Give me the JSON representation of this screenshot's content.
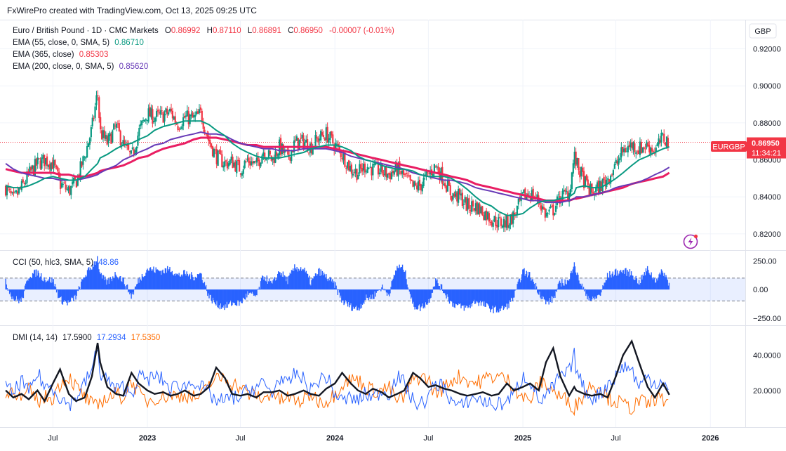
{
  "header": {
    "credit": "FxWirePro created with TradingView.com, Oct 13, 2025 09:25 UTC"
  },
  "colors": {
    "up": "#089981",
    "down": "#f23645",
    "ema55": "#089981",
    "ema365": "#673ab7",
    "ema200": "#e91e63",
    "cci": "#2962ff",
    "di_plus": "#2962ff",
    "di_minus": "#ff6d00",
    "adx": "#131722",
    "tag_bg": "#f23645"
  },
  "icons": {
    "flash": "lightning-icon"
  },
  "chart_data": [
    {
      "type": "line",
      "name_label": "Euro / British Pound · 1D · CMC Markets",
      "ohlc": {
        "o_label": "O",
        "o": "0.86992",
        "h_label": "H",
        "h": "0.87110",
        "l_label": "L",
        "l": "0.86891",
        "c_label": "C",
        "c": "0.86950",
        "change": "-0.00007 (-0.01%)"
      },
      "indicators": [
        {
          "label": "EMA (55, close, 0, SMA, 5)",
          "value": "0.86710",
          "color": "#089981"
        },
        {
          "label": "EMA (365, close)",
          "value": "0.85303",
          "color": "#673ab7"
        },
        {
          "label": "EMA (200, close, 0, SMA, 5)",
          "value": "0.85620",
          "color": "#673ab7"
        }
      ],
      "currency": "GBP",
      "symbol_tag": "EURGBP",
      "price_tag": "0.86950",
      "countdown": "11:34:21",
      "last_price": 0.8695,
      "ylim": [
        0.812,
        0.935
      ],
      "yticks": [
        0.82,
        0.84,
        0.86,
        0.88,
        0.9,
        0.92
      ],
      "ytick_labels": [
        "0.82000",
        "0.84000",
        "0.86000",
        "0.88000",
        "0.90000",
        "0.92000"
      ],
      "x": [
        "2022-03-31",
        "2022-04-15",
        "2022-05-01",
        "2022-05-15",
        "2022-06-01",
        "2022-06-15",
        "2022-07-01",
        "2022-07-15",
        "2022-08-01",
        "2022-08-15",
        "2022-09-01",
        "2022-09-15",
        "2022-09-26",
        "2022-10-01",
        "2022-10-15",
        "2022-11-01",
        "2022-11-15",
        "2022-12-01",
        "2022-12-15",
        "2023-01-01",
        "2023-01-15",
        "2023-02-01",
        "2023-02-15",
        "2023-03-01",
        "2023-03-15",
        "2023-04-01",
        "2023-04-15",
        "2023-05-01",
        "2023-05-15",
        "2023-06-01",
        "2023-06-15",
        "2023-07-01",
        "2023-07-15",
        "2023-08-01",
        "2023-08-15",
        "2023-09-01",
        "2023-09-15",
        "2023-10-01",
        "2023-10-15",
        "2023-11-01",
        "2023-11-15",
        "2023-12-01",
        "2023-12-15",
        "2024-01-01",
        "2024-01-15",
        "2024-02-01",
        "2024-02-15",
        "2024-03-01",
        "2024-03-15",
        "2024-04-01",
        "2024-04-15",
        "2024-05-01",
        "2024-05-15",
        "2024-06-01",
        "2024-06-15",
        "2024-07-01",
        "2024-07-15",
        "2024-08-01",
        "2024-08-15",
        "2024-09-01",
        "2024-09-15",
        "2024-10-01",
        "2024-10-15",
        "2024-11-01",
        "2024-11-15",
        "2024-12-01",
        "2024-12-15",
        "2025-01-01",
        "2025-01-15",
        "2025-02-01",
        "2025-02-15",
        "2025-03-01",
        "2025-03-15",
        "2025-04-01",
        "2025-04-11",
        "2025-04-15",
        "2025-05-01",
        "2025-05-15",
        "2025-06-01",
        "2025-06-15",
        "2025-07-01",
        "2025-07-15",
        "2025-08-01",
        "2025-08-15",
        "2025-09-01",
        "2025-09-15",
        "2025-10-01",
        "2025-10-13"
      ],
      "close": [
        0.845,
        0.838,
        0.845,
        0.852,
        0.858,
        0.86,
        0.858,
        0.847,
        0.843,
        0.848,
        0.862,
        0.877,
        0.897,
        0.875,
        0.869,
        0.878,
        0.868,
        0.861,
        0.875,
        0.885,
        0.883,
        0.884,
        0.886,
        0.879,
        0.883,
        0.882,
        0.885,
        0.87,
        0.862,
        0.858,
        0.859,
        0.855,
        0.86,
        0.857,
        0.865,
        0.86,
        0.867,
        0.861,
        0.869,
        0.87,
        0.867,
        0.872,
        0.874,
        0.868,
        0.863,
        0.855,
        0.853,
        0.857,
        0.855,
        0.854,
        0.852,
        0.855,
        0.851,
        0.845,
        0.846,
        0.852,
        0.857,
        0.849,
        0.841,
        0.84,
        0.835,
        0.835,
        0.832,
        0.828,
        0.826,
        0.826,
        0.83,
        0.84,
        0.842,
        0.838,
        0.83,
        0.833,
        0.84,
        0.842,
        0.862,
        0.858,
        0.848,
        0.842,
        0.846,
        0.85,
        0.857,
        0.865,
        0.868,
        0.866,
        0.868,
        0.865,
        0.872,
        0.8695
      ],
      "ema55": [
        0.846,
        0.845,
        0.845,
        0.846,
        0.848,
        0.85,
        0.851,
        0.85,
        0.849,
        0.849,
        0.851,
        0.855,
        0.858,
        0.861,
        0.863,
        0.866,
        0.868,
        0.869,
        0.871,
        0.873,
        0.876,
        0.878,
        0.879,
        0.88,
        0.881,
        0.881,
        0.881,
        0.879,
        0.876,
        0.873,
        0.869,
        0.866,
        0.864,
        0.862,
        0.861,
        0.861,
        0.861,
        0.862,
        0.863,
        0.864,
        0.866,
        0.867,
        0.868,
        0.868,
        0.867,
        0.865,
        0.862,
        0.86,
        0.859,
        0.857,
        0.856,
        0.855,
        0.855,
        0.854,
        0.852,
        0.851,
        0.851,
        0.851,
        0.85,
        0.847,
        0.844,
        0.84,
        0.837,
        0.835,
        0.832,
        0.83,
        0.83,
        0.831,
        0.834,
        0.837,
        0.838,
        0.838,
        0.839,
        0.84,
        0.842,
        0.845,
        0.846,
        0.845,
        0.845,
        0.847,
        0.85,
        0.853,
        0.857,
        0.86,
        0.862,
        0.864,
        0.866,
        0.867
      ],
      "ema365": [
        0.858,
        0.855,
        0.853,
        0.852,
        0.851,
        0.85,
        0.85,
        0.849,
        0.849,
        0.849,
        0.85,
        0.851,
        0.852,
        0.853,
        0.855,
        0.857,
        0.86,
        0.862,
        0.864,
        0.866,
        0.868,
        0.869,
        0.871,
        0.872,
        0.873,
        0.874,
        0.875,
        0.874,
        0.874,
        0.873,
        0.871,
        0.869,
        0.868,
        0.867,
        0.866,
        0.866,
        0.865,
        0.865,
        0.865,
        0.866,
        0.866,
        0.866,
        0.866,
        0.865,
        0.864,
        0.862,
        0.861,
        0.86,
        0.859,
        0.858,
        0.857,
        0.856,
        0.855,
        0.853,
        0.852,
        0.851,
        0.85,
        0.849,
        0.849,
        0.848,
        0.847,
        0.845,
        0.844,
        0.843,
        0.842,
        0.841,
        0.84,
        0.839,
        0.838,
        0.838,
        0.837,
        0.837,
        0.837,
        0.838,
        0.839,
        0.84,
        0.84,
        0.841,
        0.842,
        0.843,
        0.845,
        0.846,
        0.847,
        0.848,
        0.85,
        0.852,
        0.854,
        0.856
      ],
      "ema200": [
        0.855,
        0.854,
        0.853,
        0.853,
        0.853,
        0.853,
        0.853,
        0.852,
        0.852,
        0.851,
        0.851,
        0.852,
        0.853,
        0.854,
        0.855,
        0.856,
        0.857,
        0.859,
        0.861,
        0.862,
        0.864,
        0.866,
        0.867,
        0.868,
        0.869,
        0.871,
        0.872,
        0.872,
        0.872,
        0.871,
        0.87,
        0.869,
        0.868,
        0.868,
        0.867,
        0.867,
        0.867,
        0.867,
        0.867,
        0.867,
        0.867,
        0.867,
        0.867,
        0.866,
        0.865,
        0.864,
        0.863,
        0.862,
        0.861,
        0.86,
        0.859,
        0.858,
        0.857,
        0.856,
        0.855,
        0.854,
        0.853,
        0.852,
        0.851,
        0.85,
        0.849,
        0.847,
        0.846,
        0.845,
        0.844,
        0.843,
        0.842,
        0.841,
        0.84,
        0.839,
        0.838,
        0.838,
        0.838,
        0.838,
        0.839,
        0.839,
        0.84,
        0.841,
        0.842,
        0.843,
        0.844,
        0.845,
        0.847,
        0.848,
        0.849,
        0.85,
        0.851,
        0.853
      ]
    },
    {
      "type": "bar",
      "label": "CCI (50, hlc3, SMA, 5)",
      "value": "48.86",
      "ylim": [
        -300,
        320
      ],
      "yticks": [
        250,
        0,
        -250
      ],
      "ytick_labels": [
        "250.00",
        "0.00",
        "−250.00"
      ],
      "band": [
        -100,
        100
      ],
      "x": [
        "2022-03-31",
        "2022-04-15",
        "2022-05-01",
        "2022-05-15",
        "2022-06-01",
        "2022-06-15",
        "2022-07-01",
        "2022-07-15",
        "2022-08-01",
        "2022-08-15",
        "2022-09-01",
        "2022-09-15",
        "2022-09-26",
        "2022-10-01",
        "2022-10-15",
        "2022-11-01",
        "2022-11-15",
        "2022-12-01",
        "2022-12-15",
        "2023-01-01",
        "2023-01-15",
        "2023-02-01",
        "2023-02-15",
        "2023-03-01",
        "2023-03-15",
        "2023-04-01",
        "2023-04-15",
        "2023-05-01",
        "2023-05-15",
        "2023-06-01",
        "2023-06-15",
        "2023-07-01",
        "2023-07-15",
        "2023-08-01",
        "2023-08-15",
        "2023-09-01",
        "2023-09-15",
        "2023-10-01",
        "2023-10-15",
        "2023-11-01",
        "2023-11-15",
        "2023-12-01",
        "2023-12-15",
        "2024-01-01",
        "2024-01-15",
        "2024-02-01",
        "2024-02-15",
        "2024-03-01",
        "2024-03-15",
        "2024-04-01",
        "2024-04-15",
        "2024-05-01",
        "2024-05-15",
        "2024-06-01",
        "2024-06-15",
        "2024-07-01",
        "2024-07-15",
        "2024-08-01",
        "2024-08-15",
        "2024-09-01",
        "2024-09-15",
        "2024-10-01",
        "2024-10-15",
        "2024-11-01",
        "2024-11-15",
        "2024-12-01",
        "2024-12-15",
        "2025-01-01",
        "2025-01-15",
        "2025-02-01",
        "2025-02-15",
        "2025-03-01",
        "2025-03-15",
        "2025-04-01",
        "2025-04-11",
        "2025-04-15",
        "2025-05-01",
        "2025-05-15",
        "2025-06-01",
        "2025-06-15",
        "2025-07-01",
        "2025-07-15",
        "2025-08-01",
        "2025-08-15",
        "2025-09-01",
        "2025-09-15",
        "2025-10-01",
        "2025-10-13"
      ],
      "values": [
        60,
        -80,
        -100,
        120,
        150,
        90,
        80,
        -90,
        -120,
        -60,
        120,
        200,
        280,
        120,
        60,
        140,
        80,
        -60,
        80,
        180,
        170,
        160,
        180,
        120,
        140,
        110,
        140,
        -60,
        -130,
        -150,
        -120,
        -120,
        -40,
        -60,
        120,
        40,
        160,
        80,
        190,
        180,
        60,
        160,
        110,
        40,
        -100,
        -150,
        -170,
        -80,
        -60,
        20,
        -40,
        200,
        180,
        -140,
        -160,
        -110,
        80,
        -20,
        -120,
        -150,
        -160,
        -100,
        -130,
        -170,
        -180,
        -150,
        -60,
        160,
        120,
        -20,
        -120,
        -80,
        60,
        70,
        260,
        140,
        -20,
        -100,
        -40,
        120,
        150,
        160,
        140,
        60,
        180,
        80,
        160,
        48.86
      ]
    },
    {
      "type": "line",
      "label": "DMI (14, 14)",
      "adx_value": "17.5900",
      "plus_value": "17.2934",
      "minus_value": "17.5350",
      "ylim": [
        0,
        55
      ],
      "yticks": [
        40,
        20
      ],
      "ytick_labels": [
        "40.0000",
        "20.0000"
      ],
      "x": [
        "2022-03-31",
        "2022-04-15",
        "2022-05-01",
        "2022-05-15",
        "2022-06-01",
        "2022-06-15",
        "2022-07-01",
        "2022-07-15",
        "2022-08-01",
        "2022-08-15",
        "2022-09-01",
        "2022-09-15",
        "2022-09-26",
        "2022-10-01",
        "2022-10-15",
        "2022-11-01",
        "2022-11-15",
        "2022-12-01",
        "2022-12-15",
        "2023-01-01",
        "2023-01-15",
        "2023-02-01",
        "2023-02-15",
        "2023-03-01",
        "2023-03-15",
        "2023-04-01",
        "2023-04-15",
        "2023-05-01",
        "2023-05-15",
        "2023-06-01",
        "2023-06-15",
        "2023-07-01",
        "2023-07-15",
        "2023-08-01",
        "2023-08-15",
        "2023-09-01",
        "2023-09-15",
        "2023-10-01",
        "2023-10-15",
        "2023-11-01",
        "2023-11-15",
        "2023-12-01",
        "2023-12-15",
        "2024-01-01",
        "2024-01-15",
        "2024-02-01",
        "2024-02-15",
        "2024-03-01",
        "2024-03-15",
        "2024-04-01",
        "2024-04-15",
        "2024-05-01",
        "2024-05-15",
        "2024-06-01",
        "2024-06-15",
        "2024-07-01",
        "2024-07-15",
        "2024-08-01",
        "2024-08-15",
        "2024-09-01",
        "2024-09-15",
        "2024-10-01",
        "2024-10-15",
        "2024-11-01",
        "2024-11-15",
        "2024-12-01",
        "2024-12-15",
        "2025-01-01",
        "2025-01-15",
        "2025-02-01",
        "2025-02-15",
        "2025-03-01",
        "2025-03-15",
        "2025-04-01",
        "2025-04-11",
        "2025-04-15",
        "2025-05-01",
        "2025-05-15",
        "2025-06-01",
        "2025-06-15",
        "2025-07-01",
        "2025-07-15",
        "2025-08-01",
        "2025-08-15",
        "2025-09-01",
        "2025-09-15",
        "2025-10-01",
        "2025-10-13"
      ],
      "adx": [
        20,
        16,
        18,
        15,
        20,
        14,
        24,
        32,
        18,
        14,
        16,
        28,
        47,
        36,
        22,
        18,
        17,
        30,
        24,
        20,
        18,
        19,
        17,
        18,
        20,
        17,
        18,
        22,
        33,
        27,
        18,
        17,
        18,
        16,
        19,
        19,
        20,
        17,
        18,
        20,
        18,
        17,
        21,
        24,
        30,
        24,
        20,
        18,
        21,
        19,
        16,
        18,
        20,
        30,
        27,
        22,
        23,
        21,
        20,
        18,
        17,
        18,
        19,
        17,
        18,
        24,
        20,
        22,
        24,
        20,
        36,
        44,
        28,
        17,
        22,
        20,
        18,
        17,
        18,
        16,
        28,
        40,
        48,
        36,
        22,
        16,
        24,
        17.59
      ],
      "plus": [
        22,
        18,
        26,
        18,
        30,
        22,
        22,
        16,
        12,
        16,
        24,
        32,
        44,
        30,
        26,
        20,
        22,
        18,
        28,
        26,
        28,
        26,
        20,
        24,
        22,
        26,
        22,
        18,
        14,
        14,
        16,
        16,
        20,
        22,
        24,
        18,
        28,
        22,
        30,
        26,
        20,
        26,
        28,
        18,
        14,
        16,
        14,
        18,
        16,
        20,
        18,
        28,
        24,
        14,
        12,
        16,
        24,
        22,
        14,
        10,
        14,
        16,
        14,
        12,
        12,
        14,
        18,
        28,
        26,
        14,
        16,
        22,
        28,
        30,
        40,
        32,
        20,
        16,
        18,
        24,
        28,
        34,
        32,
        22,
        28,
        24,
        26,
        17.29
      ],
      "minus": [
        16,
        22,
        14,
        20,
        14,
        16,
        16,
        24,
        28,
        22,
        16,
        12,
        10,
        14,
        16,
        18,
        16,
        26,
        18,
        14,
        16,
        16,
        18,
        16,
        18,
        16,
        16,
        24,
        26,
        28,
        24,
        22,
        18,
        18,
        14,
        20,
        14,
        16,
        14,
        14,
        18,
        14,
        14,
        18,
        24,
        26,
        26,
        22,
        20,
        20,
        22,
        14,
        16,
        26,
        28,
        26,
        18,
        22,
        26,
        28,
        26,
        24,
        26,
        28,
        28,
        26,
        22,
        16,
        14,
        24,
        24,
        20,
        16,
        14,
        10,
        12,
        18,
        24,
        22,
        16,
        14,
        12,
        10,
        14,
        12,
        16,
        14,
        17.54
      ]
    },
    {
      "type": "axis",
      "xticks": [
        {
          "date": "2022-07-01",
          "label": "Jul",
          "bold": false
        },
        {
          "date": "2023-01-01",
          "label": "2023",
          "bold": true
        },
        {
          "date": "2023-07-01",
          "label": "Jul",
          "bold": false
        },
        {
          "date": "2024-01-01",
          "label": "2024",
          "bold": true
        },
        {
          "date": "2024-07-01",
          "label": "Jul",
          "bold": false
        },
        {
          "date": "2025-01-01",
          "label": "2025",
          "bold": true
        },
        {
          "date": "2025-07-01",
          "label": "Jul",
          "bold": false
        },
        {
          "date": "2026-01-01",
          "label": "2026",
          "bold": true
        }
      ]
    }
  ]
}
